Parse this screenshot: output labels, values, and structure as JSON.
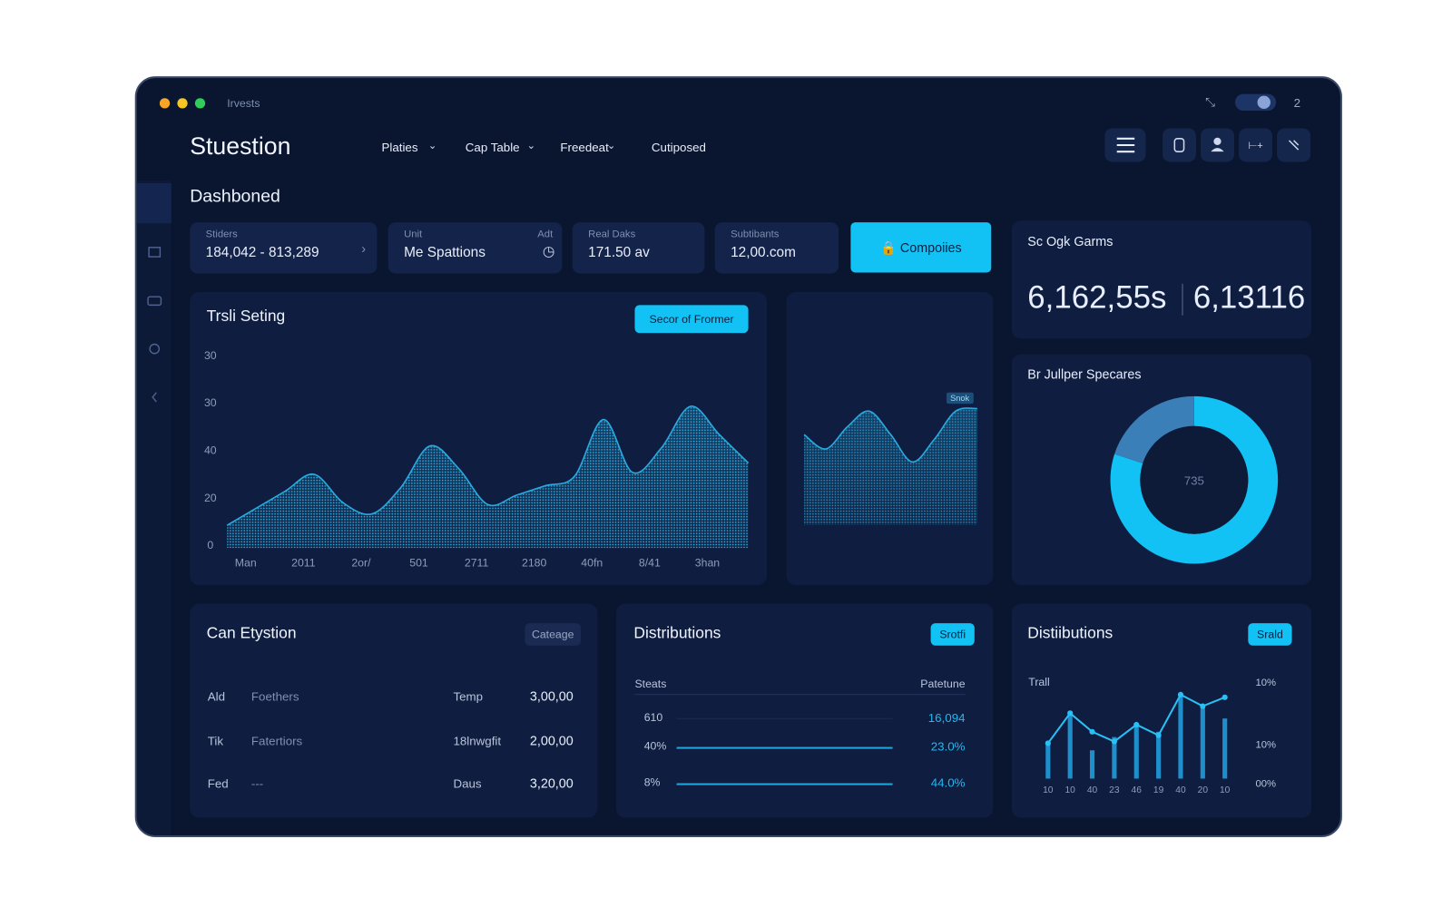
{
  "window": {
    "app_name": "Irvests",
    "badge": "2"
  },
  "header": {
    "brand": "Stuestion",
    "nav": [
      "Platies",
      "Cap Table",
      "Freedeat",
      "Cutiposed"
    ]
  },
  "page_title": "Dashboned",
  "stats": [
    {
      "label": "Stiders",
      "value": "184,042 - 813,289"
    },
    {
      "label": "Unit",
      "note": "Adt",
      "value": "Me Spattions"
    },
    {
      "label": "Real Daks",
      "value": "171.50 av"
    },
    {
      "label": "Subtibants",
      "value": "12,00.com"
    }
  ],
  "action_button": "Compoiies",
  "trend_panel": {
    "title": "Trsli Seting",
    "button": "Secor of Frormer",
    "chart_data": {
      "type": "area",
      "color": "#29a9de",
      "y_labels": [
        "30",
        "30",
        "40",
        "20",
        "0"
      ],
      "x_labels": [
        "Man",
        "2011",
        "2or/",
        "501",
        "2711",
        "2180",
        "40fn",
        "8/41",
        "3han"
      ],
      "values": [
        10,
        19,
        28,
        37,
        22,
        16,
        30,
        52,
        40,
        21,
        26,
        31,
        36,
        66,
        38,
        51,
        73,
        58,
        43
      ],
      "ylim": [
        0,
        100
      ]
    }
  },
  "mini_panel": {
    "badge": "Snok",
    "chart_data": {
      "type": "area",
      "color": "#29a9de",
      "values": [
        62,
        51,
        68,
        80,
        62,
        41,
        58,
        80,
        82
      ],
      "ylim": [
        0,
        100
      ]
    }
  },
  "summary": {
    "title": "Sc Ogk Garms",
    "values": [
      "6,162,55s",
      "6,13116"
    ]
  },
  "donut_panel": {
    "title": "Br Jullper Specares",
    "chart_data": {
      "type": "donut",
      "center_label": "735",
      "values": [
        80,
        20
      ],
      "colors": [
        "#12c2f5",
        "#3b7fb8"
      ]
    }
  },
  "table_panel": {
    "title": "Can Etystion",
    "button": "Cateage",
    "rows": [
      [
        "Ald",
        "Foethers",
        "Temp",
        "3,00,00"
      ],
      [
        "Tik",
        "Fatertiors",
        "18lnwgfit",
        "2,00,00"
      ],
      [
        "Fed",
        "---",
        "Daus",
        "3,20,00"
      ]
    ]
  },
  "distribution_panel": {
    "title": "Distributions",
    "button": "Srotfi",
    "headers": [
      "Steats",
      "Patetune"
    ],
    "rows": [
      [
        "610",
        "16,094"
      ],
      [
        "40%",
        "23.0%"
      ],
      [
        "8%",
        "44.0%"
      ]
    ]
  },
  "trend_bars_panel": {
    "title": "Distiibutions",
    "button": "Srald",
    "chart_data": {
      "type": "bar",
      "label": "Trall",
      "categories": [
        "10",
        "10",
        "40",
        "23",
        "46",
        "19",
        "40",
        "20",
        "10"
      ],
      "right_labels": [
        "10%",
        "10%",
        "00%"
      ],
      "ylim": [
        0,
        100
      ],
      "series": [
        {
          "type": "bar",
          "color": "#1f8fcc",
          "values": [
            42,
            74,
            32,
            47,
            63,
            53,
            95,
            84,
            68
          ]
        },
        {
          "type": "line",
          "color": "#2bc0f5",
          "values": [
            40,
            74,
            53,
            42,
            61,
            49,
            95,
            82,
            92
          ]
        }
      ]
    }
  }
}
